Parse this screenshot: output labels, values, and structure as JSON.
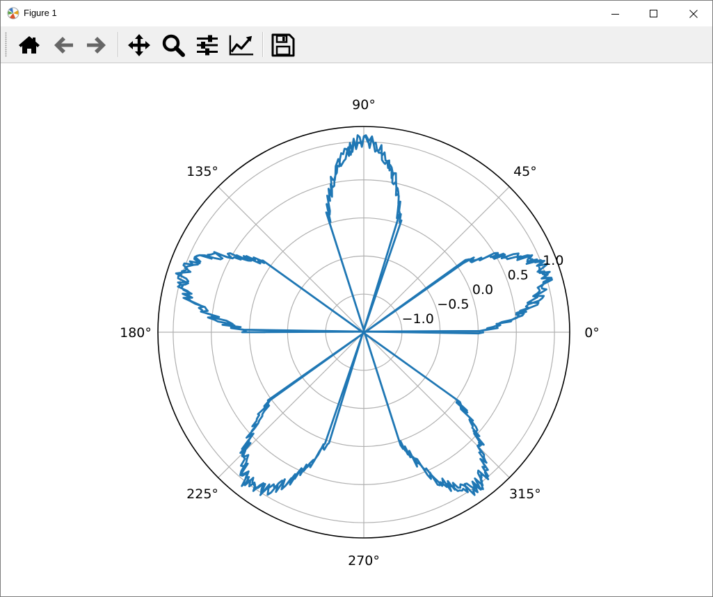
{
  "window": {
    "title": "Figure 1",
    "icon": "matplotlib-figure-icon",
    "controls": [
      "minimize-icon",
      "maximize-icon",
      "close-icon"
    ]
  },
  "toolbar": {
    "buttons": [
      {
        "name": "home-button",
        "icon": "home-icon"
      },
      {
        "name": "back-button",
        "icon": "arrow-left-icon"
      },
      {
        "name": "forward-button",
        "icon": "arrow-right-icon"
      },
      {
        "name": "pan-button",
        "icon": "move-icon"
      },
      {
        "name": "zoom-button",
        "icon": "magnifier-icon"
      },
      {
        "name": "configure-subplots-button",
        "icon": "sliders-icon"
      },
      {
        "name": "edit-axes-button",
        "icon": "line-chart-icon"
      },
      {
        "name": "save-button",
        "icon": "floppy-disk-icon"
      }
    ]
  },
  "chart_data": {
    "type": "line",
    "projection": "polar",
    "title": "",
    "angle_ticks": [
      "0°",
      "45°",
      "90°",
      "135°",
      "180°",
      "225°",
      "270°",
      "315°"
    ],
    "radial_ticks": [
      "−1.0",
      "−0.5",
      "0.0",
      "0.5",
      "1.0"
    ],
    "radial_tick_values": [
      -1.0,
      -0.5,
      0.0,
      0.5,
      1.0
    ],
    "rlim": [
      -1.5,
      1.2
    ],
    "radial_label_position_deg": 22.5,
    "grid": true,
    "series": [
      {
        "color": "#1f77b4",
        "function": "r = sin(5·θ) with random noise (amplitude ≈ 0.1)",
        "theta_range_deg": [
          0,
          360
        ],
        "lobe_peak_r": 1.0,
        "lobe_angles_deg": [
          18,
          90,
          162,
          234,
          306
        ],
        "x_theta_deg": [
          0,
          18,
          36,
          54,
          72,
          90,
          108,
          126,
          144,
          162,
          180,
          198,
          216,
          234,
          252,
          270,
          288,
          306,
          324,
          342,
          360
        ],
        "y_r": [
          0.0,
          1.0,
          0.0,
          -1.0,
          0.0,
          1.0,
          0.0,
          -1.0,
          0.0,
          1.0,
          0.0,
          -1.0,
          0.0,
          1.0,
          0.0,
          -1.0,
          0.0,
          1.0,
          0.0,
          -1.0,
          0.0
        ]
      }
    ]
  }
}
